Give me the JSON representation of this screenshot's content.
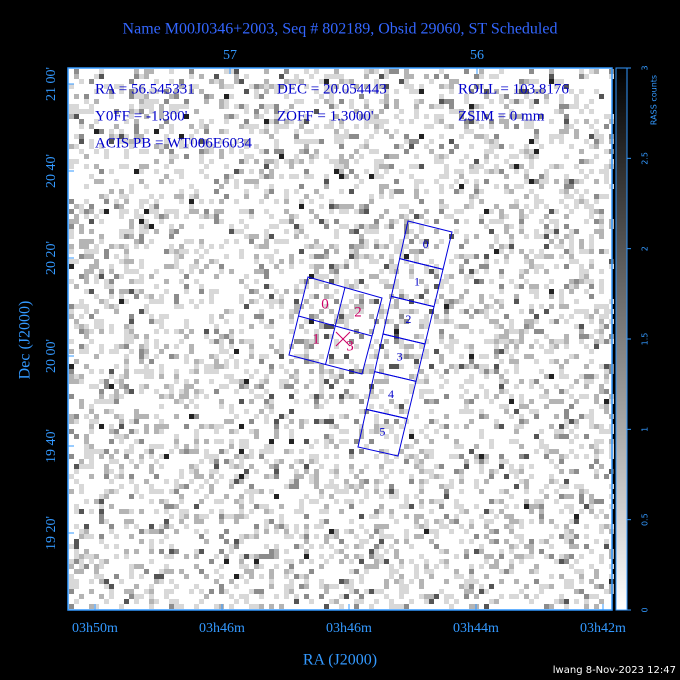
{
  "title": "Name M00J0346+2003, Seq # 802189, Obsid 29060, ST Scheduled",
  "top_axis": {
    "ticks": [
      "57",
      "56"
    ]
  },
  "info": [
    "RA = 56.545331",
    "DEC = 20.054443",
    "ROLL = 103.8176",
    "Y0FF = -1.300'",
    "ZOFF = 1.3000'",
    "ZSIM = 0 mm",
    "ACIS PB = WT006E6034"
  ],
  "y_axis": {
    "label": "Dec (J2000)",
    "ticks": [
      "21 00'",
      "20 40'",
      "20 20'",
      "20 00'",
      "19 40'",
      "19 20'"
    ]
  },
  "x_axis": {
    "label": "RA (J2000)",
    "ticks": [
      "03h50m",
      "03h46m",
      "03h46m",
      "03h44m",
      "03h42m"
    ]
  },
  "colorbar": {
    "label": "RASS counts",
    "lim": [
      0,
      3
    ],
    "ticks": [
      0,
      0.5,
      1,
      1.5,
      2,
      2.5,
      3
    ]
  },
  "acis_s": {
    "chips": [
      "0",
      "1",
      "2",
      "3",
      "4",
      "5"
    ]
  },
  "acis_i": {
    "chips": [
      "0",
      "2",
      "1",
      "3"
    ]
  },
  "footer": "lwang  8-Nov-2023 12:47"
}
